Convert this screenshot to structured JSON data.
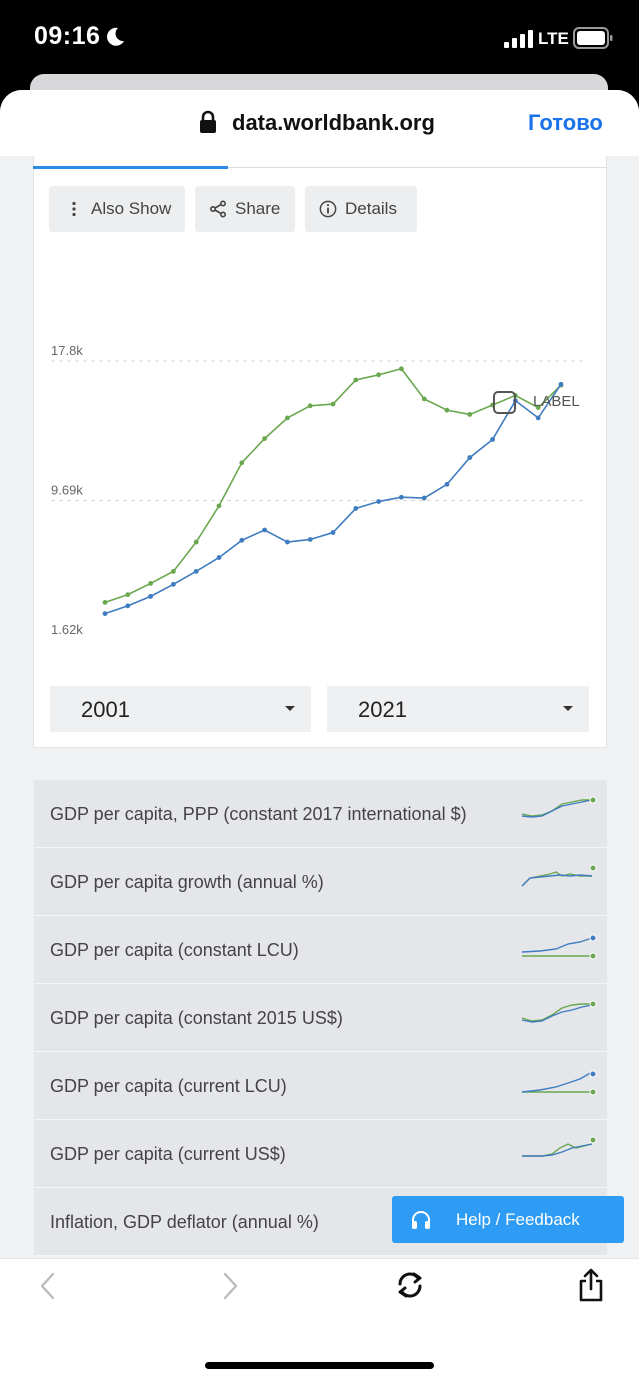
{
  "status_bar": {
    "time": "09:16",
    "network": "LTE"
  },
  "browser": {
    "url": "data.worldbank.org",
    "done_label": "Готово"
  },
  "actions": {
    "also_show": "Also Show",
    "share": "Share",
    "details": "Details"
  },
  "chart_data": {
    "type": "line",
    "y_ticks": [
      "17.8k",
      "9.69k",
      "1.62k"
    ],
    "ylim": [
      1620,
      17800
    ],
    "x": [
      2001,
      2002,
      2003,
      2004,
      2005,
      2006,
      2007,
      2008,
      2009,
      2010,
      2011,
      2012,
      2013,
      2014,
      2015,
      2016,
      2017,
      2018,
      2019,
      2020,
      2021
    ],
    "series": [
      {
        "color": "#6aa84f",
        "values": [
          3800,
          4250,
          4900,
          5600,
          7300,
          9400,
          11900,
          13300,
          14500,
          15200,
          15300,
          16700,
          17000,
          17350,
          15600,
          14950,
          14700,
          15250,
          15800,
          15100,
          16400
        ]
      },
      {
        "color": "#3f7cc0",
        "values": [
          3150,
          3600,
          4150,
          4850,
          5600,
          6400,
          7400,
          8000,
          7300,
          7450,
          7850,
          9250,
          9650,
          9900,
          9850,
          10650,
          12200,
          13250,
          15500,
          14500,
          16450
        ]
      }
    ],
    "legend_checkbox": "LABEL",
    "grid": true
  },
  "range": {
    "start": "2001",
    "end": "2021"
  },
  "indicators": [
    {
      "label": "GDP per capita, PPP (constant 2017 international $)"
    },
    {
      "label": "GDP per capita growth (annual %)"
    },
    {
      "label": "GDP per capita (constant LCU)"
    },
    {
      "label": "GDP per capita (constant 2015 US$)"
    },
    {
      "label": "GDP per capita (current LCU)"
    },
    {
      "label": "GDP per capita (current US$)"
    },
    {
      "label": "Inflation, GDP deflator (annual %)"
    }
  ],
  "help_label": "Help / Feedback",
  "colors": {
    "accent": "#2d8ae2",
    "green": "#6aa84f",
    "blue": "#3f7cc0",
    "help": "#2e9cf5"
  }
}
